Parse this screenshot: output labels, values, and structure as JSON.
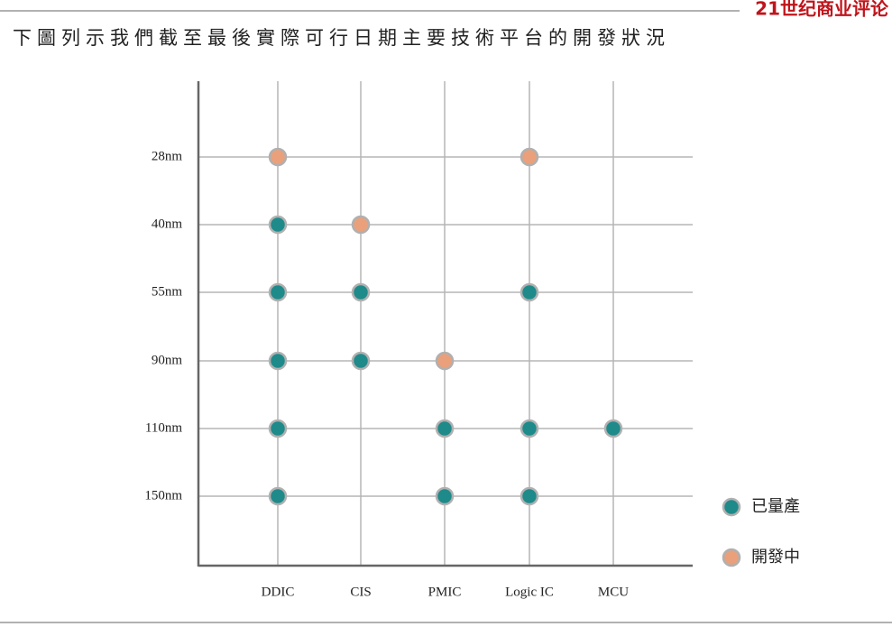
{
  "chart_data": {
    "type": "matrix",
    "title": "下圖列示我們截至最後實際可行日期主要技術平台的開發狀況",
    "source": "21世纪商业评论",
    "x_categories": [
      "DDIC",
      "CIS",
      "PMIC",
      "Logic IC",
      "MCU"
    ],
    "y_categories": [
      "28nm",
      "40nm",
      "55nm",
      "90nm",
      "110nm",
      "150nm"
    ],
    "grid": true,
    "series": [
      {
        "name": "已量產",
        "color": "#1f8a8a",
        "points": [
          [
            "DDIC",
            "40nm"
          ],
          [
            "DDIC",
            "55nm"
          ],
          [
            "CIS",
            "55nm"
          ],
          [
            "Logic IC",
            "55nm"
          ],
          [
            "DDIC",
            "90nm"
          ],
          [
            "CIS",
            "90nm"
          ],
          [
            "DDIC",
            "110nm"
          ],
          [
            "PMIC",
            "110nm"
          ],
          [
            "Logic IC",
            "110nm"
          ],
          [
            "MCU",
            "110nm"
          ],
          [
            "DDIC",
            "150nm"
          ],
          [
            "PMIC",
            "150nm"
          ],
          [
            "Logic IC",
            "150nm"
          ]
        ]
      },
      {
        "name": "開發中",
        "color": "#e9a07b",
        "points": [
          [
            "DDIC",
            "28nm"
          ],
          [
            "Logic IC",
            "28nm"
          ],
          [
            "CIS",
            "40nm"
          ],
          [
            "PMIC",
            "90nm"
          ]
        ]
      }
    ]
  }
}
